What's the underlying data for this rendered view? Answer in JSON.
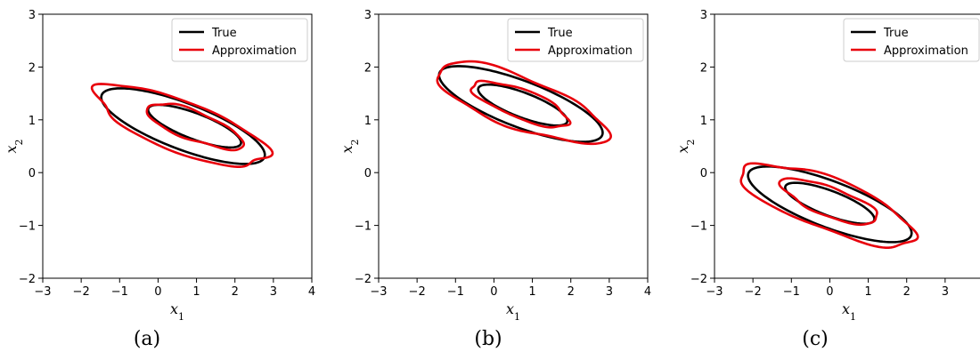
{
  "chart_data": [
    {
      "type": "line",
      "caption": "(a)",
      "xlabel": "x",
      "xlabel_sub": "1",
      "ylabel": "x",
      "ylabel_sub": "2",
      "xlim": [
        -3,
        4
      ],
      "ylim": [
        -2,
        3
      ],
      "xticks": [
        -3,
        -2,
        -1,
        0,
        1,
        2,
        3,
        4
      ],
      "yticks": [
        -2,
        -1,
        0,
        1,
        2,
        3
      ],
      "grid": false,
      "legend": {
        "placement": "top-right",
        "entries": [
          "True",
          "Approximation"
        ]
      },
      "series": [
        {
          "name": "True",
          "color": "#000000",
          "ellipses": [
            {
              "center": [
                0.65,
                0.88
              ],
              "semi_axes": [
                2.2,
                0.45
              ],
              "angle_deg": -15
            },
            {
              "center": [
                0.95,
                0.88
              ],
              "semi_axes": [
                1.25,
                0.25
              ],
              "angle_deg": -15
            }
          ]
        },
        {
          "name": "Approximation",
          "color": "#e8000b",
          "ellipses": [
            {
              "center": [
                0.6,
                0.88
              ],
              "semi_axes": [
                2.3,
                0.5
              ],
              "angle_deg": -15
            },
            {
              "center": [
                0.95,
                0.88
              ],
              "semi_axes": [
                1.3,
                0.28
              ],
              "angle_deg": -15
            }
          ]
        }
      ]
    },
    {
      "type": "line",
      "caption": "(b)",
      "xlabel": "x",
      "xlabel_sub": "1",
      "ylabel": "x",
      "ylabel_sub": "2",
      "xlim": [
        -3,
        4
      ],
      "ylim": [
        -2,
        3
      ],
      "xticks": [
        -3,
        -2,
        -1,
        0,
        1,
        2,
        3,
        4
      ],
      "yticks": [
        -2,
        -1,
        0,
        1,
        2,
        3
      ],
      "grid": false,
      "legend": {
        "placement": "top-right",
        "entries": [
          "True",
          "Approximation"
        ]
      },
      "series": [
        {
          "name": "True",
          "color": "#000000",
          "ellipses": [
            {
              "center": [
                0.7,
                1.3
              ],
              "semi_axes": [
                2.2,
                0.45
              ],
              "angle_deg": -15
            },
            {
              "center": [
                0.75,
                1.28
              ],
              "semi_axes": [
                1.2,
                0.24
              ],
              "angle_deg": -15
            }
          ]
        },
        {
          "name": "Approximation",
          "color": "#e8000b",
          "ellipses": [
            {
              "center": [
                0.7,
                1.32
              ],
              "semi_axes": [
                2.3,
                0.5
              ],
              "angle_deg": -15
            },
            {
              "center": [
                0.7,
                1.3
              ],
              "semi_axes": [
                1.3,
                0.28
              ],
              "angle_deg": -15
            }
          ]
        }
      ]
    },
    {
      "type": "line",
      "caption": "(c)",
      "xlabel": "x",
      "xlabel_sub": "1",
      "ylabel": "x",
      "ylabel_sub": "2",
      "xlim": [
        -3,
        4
      ],
      "ylim": [
        -2,
        3
      ],
      "xticks": [
        -3,
        -2,
        -1,
        0,
        1,
        2,
        3
      ],
      "yticks": [
        -2,
        -1,
        0,
        1,
        2,
        3
      ],
      "grid": false,
      "legend": {
        "placement": "top-right",
        "entries": [
          "True",
          "Approximation"
        ]
      },
      "series": [
        {
          "name": "True",
          "color": "#000000",
          "ellipses": [
            {
              "center": [
                0.0,
                -0.6
              ],
              "semi_axes": [
                2.2,
                0.45
              ],
              "angle_deg": -15
            },
            {
              "center": [
                0.0,
                -0.58
              ],
              "semi_axes": [
                1.2,
                0.24
              ],
              "angle_deg": -15
            }
          ]
        },
        {
          "name": "Approximation",
          "color": "#e8000b",
          "ellipses": [
            {
              "center": [
                -0.05,
                -0.6
              ],
              "semi_axes": [
                2.35,
                0.5
              ],
              "angle_deg": -15
            },
            {
              "center": [
                0.0,
                -0.55
              ],
              "semi_axes": [
                1.3,
                0.28
              ],
              "angle_deg": -15
            }
          ]
        }
      ]
    }
  ]
}
